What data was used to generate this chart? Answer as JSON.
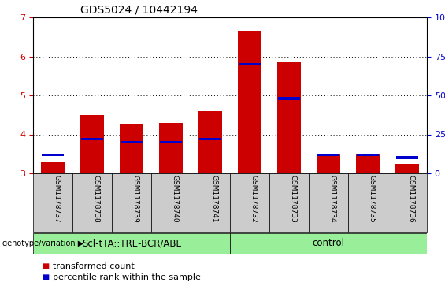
{
  "title": "GDS5024 / 10442194",
  "samples": [
    "GSM1178737",
    "GSM1178738",
    "GSM1178739",
    "GSM1178740",
    "GSM1178741",
    "GSM1178732",
    "GSM1178733",
    "GSM1178734",
    "GSM1178735",
    "GSM1178736"
  ],
  "red_values": [
    3.3,
    4.5,
    4.25,
    4.3,
    4.6,
    6.65,
    5.85,
    3.5,
    3.5,
    3.25
  ],
  "blue_values_pct": [
    12,
    22,
    20,
    20,
    22,
    70,
    48,
    12,
    12,
    10
  ],
  "ylim": [
    3.0,
    7.0
  ],
  "yticks": [
    3,
    4,
    5,
    6,
    7
  ],
  "right_yticks": [
    0,
    25,
    50,
    75,
    100
  ],
  "group1_label": "Scl-tTA::TRE-BCR/ABL",
  "group2_label": "control",
  "group1_count": 5,
  "group2_count": 5,
  "legend_red": "transformed count",
  "legend_blue": "percentile rank within the sample",
  "genotype_label": "genotype/variation",
  "bar_width": 0.6,
  "red_color": "#cc0000",
  "blue_color": "#0000cc",
  "group_bg_color": "#99ee99",
  "tick_label_bg": "#cccccc",
  "plot_bg": "#ffffff",
  "grid_color": "#000000",
  "left_tick_color": "#cc0000",
  "right_tick_color": "#0000cc",
  "title_fontsize": 10,
  "axis_fontsize": 8,
  "legend_fontsize": 8,
  "group_fontsize": 8.5,
  "sample_fontsize": 6.5
}
